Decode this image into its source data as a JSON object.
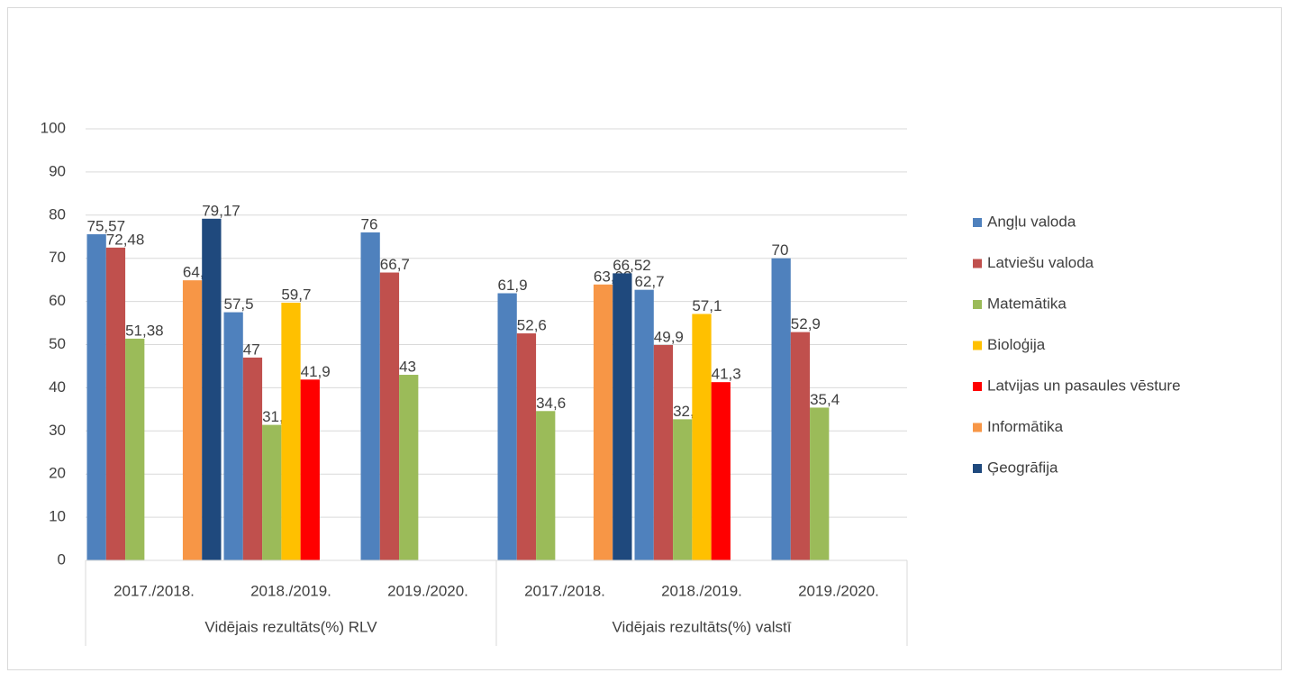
{
  "chart_data": {
    "type": "bar",
    "categories": [
      "2017./2018.",
      "2018./2019.",
      "2019./2020.",
      "2017./2018.",
      "2018./2019.",
      "2019./2020."
    ],
    "category_groups": [
      "Vidējais rezultāts(%) RLV",
      "Vidējais rezultāts(%) valstī"
    ],
    "series": [
      {
        "name": "Angļu valoda",
        "color": "#4f81bd",
        "values": [
          75.57,
          57.5,
          76,
          61.9,
          62.7,
          70
        ],
        "value_labels": [
          "75,57",
          "57,5",
          "76",
          "61,9",
          "62,7",
          "70"
        ]
      },
      {
        "name": "Latviešu valoda",
        "color": "#c0504d",
        "values": [
          72.48,
          47,
          66.7,
          52.6,
          49.9,
          52.9
        ],
        "value_labels": [
          "72,48",
          "47",
          "66,7",
          "52,6",
          "49,9",
          "52,9"
        ]
      },
      {
        "name": "Matemātika",
        "color": "#9bbb59",
        "values": [
          51.38,
          31.4,
          43,
          34.6,
          32.7,
          35.4
        ],
        "value_labels": [
          "51,38",
          "31,4",
          "43",
          "34,6",
          "32,7",
          "35,4"
        ]
      },
      {
        "name": "Bioloģija",
        "color": "#ffc000",
        "values": [
          null,
          59.7,
          null,
          null,
          57.1,
          null
        ],
        "value_labels": [
          null,
          "59,7",
          null,
          null,
          "57,1",
          null
        ]
      },
      {
        "name": "Latvijas un pasaules vēsture",
        "color": "#ff0000",
        "values": [
          null,
          41.9,
          null,
          null,
          41.3,
          null
        ],
        "value_labels": [
          null,
          "41,9",
          null,
          null,
          "41,3",
          null
        ]
      },
      {
        "name": "Informātika",
        "color": "#f79646",
        "values": [
          64.9,
          null,
          null,
          63.93,
          null,
          null
        ],
        "value_labels": [
          "64,9",
          null,
          null,
          "63,93",
          null,
          null
        ]
      },
      {
        "name": "Ģeogrāfija",
        "color": "#1f497d",
        "values": [
          79.17,
          null,
          null,
          66.52,
          null,
          null
        ],
        "value_labels": [
          "79,17",
          null,
          null,
          "66,52",
          null,
          null
        ]
      }
    ],
    "ylim": [
      0,
      100
    ],
    "yticks": [
      0,
      10,
      20,
      30,
      40,
      50,
      60,
      70,
      80,
      90,
      100
    ],
    "grid": true,
    "legend": "right"
  }
}
